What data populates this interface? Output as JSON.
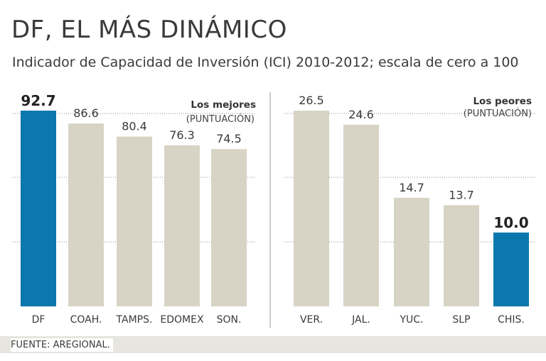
{
  "header": {
    "title": "DF, EL MÁS DINÁMICO",
    "subtitle": "Indicador de Capacidad de Inversión (ICI) 2010-2012; escala de cero a 100"
  },
  "colors": {
    "highlight": "#0b77ad",
    "bar": "#d7d4c6",
    "gridline": "#8a8a8a",
    "divider": "#9a9a9a",
    "footer_band": "#e6e5e0"
  },
  "groups": {
    "best": {
      "title": "Los mejores",
      "subtitle": "(PUNTUACIÓN)"
    },
    "worst": {
      "title": "Los peores",
      "subtitle": "(PUNTUACIÓN)"
    }
  },
  "chart_data": [
    {
      "type": "bar",
      "title": "Los mejores",
      "ylabel": "(PUNTUACIÓN)",
      "ylim": [
        0,
        100
      ],
      "categories": [
        "DF",
        "COAH.",
        "TAMPS.",
        "EDOMEX",
        "SON."
      ],
      "values": [
        92.7,
        86.6,
        80.4,
        76.3,
        74.5
      ],
      "value_labels": [
        "92.7",
        "86.6",
        "80.4",
        "76.3",
        "74.5"
      ],
      "highlighted": [
        "DF"
      ]
    },
    {
      "type": "bar",
      "title": "Los peores",
      "ylabel": "(PUNTUACIÓN)",
      "ylim": [
        0,
        30
      ],
      "categories": [
        "VER.",
        "JAL.",
        "YUC.",
        "SLP",
        "CHIS."
      ],
      "values": [
        26.5,
        24.6,
        14.7,
        13.7,
        10.0
      ],
      "value_labels": [
        "26.5",
        "24.6",
        "14.7",
        "13.7",
        "10.0"
      ],
      "highlighted": [
        "CHIS."
      ]
    }
  ],
  "footer": {
    "source": "FUENTE: AREGIONAL."
  }
}
